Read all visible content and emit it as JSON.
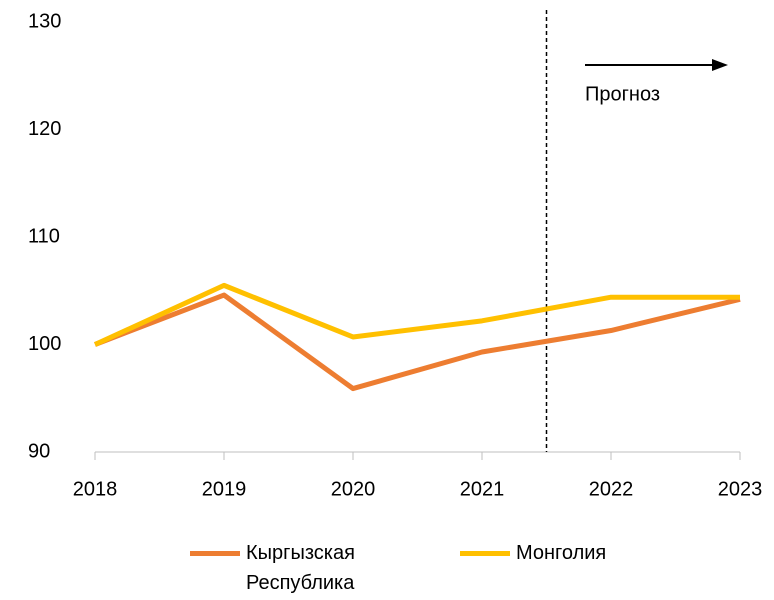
{
  "chart_data": {
    "type": "line",
    "categories": [
      "2018",
      "2019",
      "2020",
      "2021",
      "2022",
      "2023"
    ],
    "series": [
      {
        "name": "Кыргызская Республика",
        "color": "#ED7D31",
        "values": [
          100,
          104.6,
          95.9,
          99.3,
          101.3,
          104.2
        ]
      },
      {
        "name": "Монголия",
        "color": "#FFC000",
        "values": [
          100,
          105.5,
          100.7,
          102.2,
          104.4,
          104.4
        ]
      }
    ],
    "ylim": [
      90,
      130
    ],
    "yticks": [
      90,
      100,
      110,
      120,
      130
    ],
    "annotation": "Прогноз",
    "legend": "bottom"
  }
}
